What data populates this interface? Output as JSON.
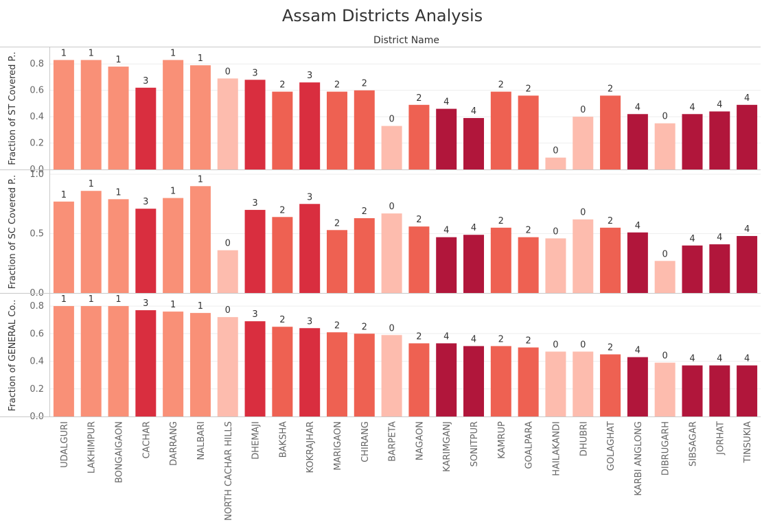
{
  "chart_data": {
    "type": "bar",
    "title": "Assam Districts Analysis",
    "column_header": "District Name",
    "categories": [
      "UDALGURI",
      "LAKHIMPUR",
      "BONGAIGAON",
      "CACHAR",
      "DARRANG",
      "NALBARI",
      "NORTH CACHAR HILLS",
      "DHEMAJI",
      "BAKSHA",
      "KOKRAJHAR",
      "MARIGAON",
      "CHIRANG",
      "BARPETA",
      "NAGAON",
      "KARIMGANJ",
      "SONITPUR",
      "KAMRUP",
      "GOALPARA",
      "HAILAKANDI",
      "DHUBRI",
      "GOLAGHAT",
      "KARBI ANGLONG",
      "DIBRUGARH",
      "SIBSAGAR",
      "JORHAT",
      "TINSUKIA"
    ],
    "cluster_labels": [
      "1",
      "1",
      "1",
      "3",
      "1",
      "1",
      "0",
      "3",
      "2",
      "3",
      "2",
      "2",
      "0",
      "2",
      "4",
      "4",
      "2",
      "2",
      "0",
      "0",
      "2",
      "4",
      "0",
      "4",
      "4",
      "4"
    ],
    "cluster_colors": {
      "0": "#fdbcae",
      "1": "#f99077",
      "2": "#ee6152",
      "3": "#d92e3f",
      "4": "#b1163b"
    },
    "grid": true,
    "panels": [
      {
        "ylabel": "Fraction of ST Covered P..",
        "ylim": [
          0,
          0.9
        ],
        "yticks": [
          0.0,
          0.2,
          0.4,
          0.6,
          0.8
        ],
        "ytick_labels": [
          "0.0",
          "0.2",
          "0.4",
          "0.6",
          "0.8"
        ],
        "values": [
          0.83,
          0.83,
          0.78,
          0.62,
          0.83,
          0.79,
          0.69,
          0.68,
          0.59,
          0.66,
          0.59,
          0.6,
          0.33,
          0.49,
          0.46,
          0.39,
          0.59,
          0.56,
          0.09,
          0.4,
          0.56,
          0.42,
          0.35,
          0.42,
          0.44,
          0.49
        ]
      },
      {
        "ylabel": "Fraction of SC Covered P..",
        "ylim": [
          0,
          1.0
        ],
        "yticks": [
          0.0,
          0.5,
          1.0
        ],
        "ytick_labels": [
          "0.0",
          "0.5",
          "1.0"
        ],
        "values": [
          0.77,
          0.86,
          0.79,
          0.71,
          0.8,
          0.9,
          0.36,
          0.7,
          0.64,
          0.75,
          0.53,
          0.63,
          0.67,
          0.56,
          0.47,
          0.49,
          0.55,
          0.47,
          0.46,
          0.62,
          0.55,
          0.51,
          0.27,
          0.4,
          0.41,
          0.48
        ]
      },
      {
        "ylabel": "Fraction of GENERAL Co..",
        "ylim": [
          0,
          0.86
        ],
        "yticks": [
          0.0,
          0.2,
          0.4,
          0.6,
          0.8
        ],
        "ytick_labels": [
          "0.0",
          "0.2",
          "0.4",
          "0.6",
          "0.8"
        ],
        "values": [
          0.8,
          0.8,
          0.8,
          0.77,
          0.76,
          0.75,
          0.72,
          0.69,
          0.65,
          0.64,
          0.61,
          0.6,
          0.59,
          0.53,
          0.53,
          0.51,
          0.51,
          0.5,
          0.47,
          0.47,
          0.45,
          0.43,
          0.39,
          0.37,
          0.37,
          0.37
        ]
      }
    ]
  }
}
